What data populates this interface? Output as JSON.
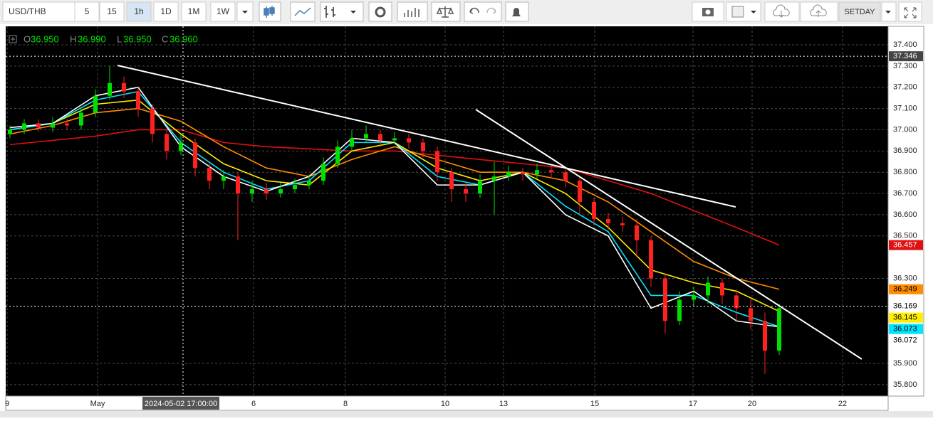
{
  "toolbar": {
    "symbol": "USD/THB",
    "intervals": [
      "5",
      "15",
      "1h",
      "1D",
      "1M",
      "1W"
    ],
    "active_interval": 2,
    "template": "SETDAY"
  },
  "ohlc_legend": {
    "o_label": "O",
    "open": "36.950",
    "h_label": "H",
    "high": "36.990",
    "l_label": "L",
    "low": "36.950",
    "c_label": "C",
    "close": "36.960"
  },
  "chart_data": {
    "type": "candlestick",
    "up_color": "#00e000",
    "down_color": "#ff2020",
    "candles": {
      "open": [
        36.98,
        37.0,
        37.03,
        37.01,
        37.03,
        37.02,
        37.08,
        37.16,
        37.22,
        37.18,
        37.1,
        36.98,
        36.9,
        36.94,
        36.82,
        36.76,
        36.78,
        36.7,
        36.72,
        36.7,
        36.72,
        36.74,
        36.76,
        36.84,
        36.92,
        36.96,
        36.98,
        36.95,
        36.96,
        36.94,
        36.9,
        36.8,
        36.72,
        36.7,
        36.76,
        36.78,
        36.8,
        36.79,
        36.81,
        36.8,
        36.76,
        36.66,
        36.58,
        36.56,
        36.55,
        36.48,
        36.3,
        36.1,
        36.2,
        36.22,
        36.28,
        36.22,
        36.16,
        36.1,
        35.96
      ],
      "high": [
        37.02,
        37.05,
        37.05,
        37.06,
        37.05,
        37.1,
        37.19,
        37.3,
        37.25,
        37.2,
        37.12,
        37.0,
        36.98,
        36.96,
        36.84,
        36.81,
        36.8,
        36.76,
        36.75,
        36.75,
        36.77,
        36.79,
        36.87,
        36.95,
        37.0,
        37.02,
        37.0,
        36.99,
        36.98,
        36.96,
        36.92,
        36.82,
        36.75,
        36.79,
        36.85,
        36.83,
        36.82,
        36.84,
        36.83,
        36.82,
        36.78,
        36.68,
        36.61,
        36.59,
        36.58,
        36.5,
        36.32,
        36.24,
        36.26,
        36.31,
        36.3,
        36.25,
        36.2,
        36.14,
        36.18
      ],
      "low": [
        36.96,
        36.98,
        36.99,
        36.99,
        37.0,
        37.0,
        37.06,
        37.14,
        37.15,
        37.06,
        36.94,
        36.86,
        36.88,
        36.78,
        36.72,
        36.72,
        36.48,
        36.66,
        36.67,
        36.68,
        36.7,
        36.72,
        36.74,
        36.82,
        36.9,
        36.94,
        36.92,
        36.93,
        36.91,
        36.87,
        36.76,
        36.66,
        36.66,
        36.68,
        36.6,
        36.76,
        36.76,
        36.77,
        36.77,
        36.73,
        36.6,
        36.55,
        36.53,
        36.52,
        36.4,
        36.26,
        36.04,
        36.08,
        36.17,
        36.18,
        36.18,
        36.1,
        36.06,
        35.85,
        35.94
      ],
      "close": [
        37.0,
        37.03,
        37.01,
        37.03,
        37.02,
        37.08,
        37.16,
        37.22,
        37.18,
        37.1,
        36.98,
        36.9,
        36.94,
        36.82,
        36.76,
        36.78,
        36.7,
        36.72,
        36.7,
        36.72,
        36.74,
        36.76,
        36.84,
        36.92,
        36.96,
        36.98,
        36.95,
        36.96,
        36.94,
        36.9,
        36.8,
        36.72,
        36.7,
        36.76,
        36.78,
        36.8,
        36.79,
        36.81,
        36.8,
        36.76,
        36.66,
        36.58,
        36.56,
        36.55,
        36.48,
        36.3,
        36.1,
        36.2,
        36.22,
        36.28,
        36.22,
        36.16,
        36.1,
        35.96,
        36.16
      ]
    },
    "lines": [
      {
        "color": "#e01010",
        "x": [
          0,
          3,
          6,
          9,
          12,
          15,
          18,
          21,
          24,
          27,
          30,
          33,
          36,
          39,
          42,
          45,
          48,
          51,
          54
        ],
        "values": [
          36.93,
          36.95,
          36.97,
          37.0,
          37.0,
          36.94,
          36.92,
          36.91,
          36.9,
          36.9,
          36.88,
          36.86,
          36.84,
          36.82,
          36.76,
          36.7,
          36.62,
          36.54,
          36.457
        ]
      },
      {
        "color": "#ff8c00",
        "x": [
          0,
          3,
          6,
          9,
          12,
          15,
          18,
          21,
          24,
          27,
          30,
          33,
          36,
          39,
          42,
          45,
          48,
          51,
          54
        ],
        "values": [
          36.98,
          37.02,
          37.08,
          37.1,
          37.04,
          36.92,
          36.82,
          36.78,
          36.86,
          36.92,
          36.86,
          36.8,
          36.8,
          36.76,
          36.66,
          36.52,
          36.38,
          36.3,
          36.249
        ]
      },
      {
        "color": "#ffee00",
        "x": [
          0,
          3,
          6,
          9,
          12,
          15,
          18,
          21,
          24,
          27,
          30,
          33,
          36,
          39,
          42,
          45,
          48,
          51,
          54
        ],
        "values": [
          37.0,
          37.03,
          37.12,
          37.14,
          36.98,
          36.84,
          36.76,
          36.74,
          36.9,
          36.94,
          36.82,
          36.76,
          36.8,
          36.7,
          36.54,
          36.34,
          36.28,
          36.24,
          36.145
        ]
      },
      {
        "color": "#00e5ff",
        "x": [
          0,
          3,
          6,
          9,
          12,
          15,
          18,
          21,
          24,
          27,
          30,
          33,
          36,
          39,
          42,
          45,
          48,
          51,
          54
        ],
        "values": [
          37.0,
          37.03,
          37.14,
          37.18,
          36.94,
          36.8,
          36.72,
          36.76,
          36.94,
          36.94,
          36.78,
          36.74,
          36.8,
          36.64,
          36.52,
          36.22,
          36.22,
          36.14,
          36.073
        ]
      },
      {
        "color": "#ffffff",
        "x": [
          0,
          3,
          6,
          9,
          12,
          15,
          18,
          21,
          24,
          27,
          30,
          33,
          36,
          39,
          42,
          45,
          48,
          51,
          54
        ],
        "values": [
          37.01,
          37.03,
          37.16,
          37.2,
          36.92,
          36.78,
          36.71,
          36.78,
          36.96,
          36.94,
          36.74,
          36.74,
          36.8,
          36.6,
          36.5,
          36.16,
          36.24,
          36.1,
          36.072
        ]
      }
    ],
    "xlim": [
      -0.3,
      61.65
    ],
    "xticks": [
      {
        "value": -0.2,
        "label": "9"
      },
      {
        "value": 6.15,
        "label": "May"
      },
      {
        "value": 17.1,
        "label": "6"
      },
      {
        "value": 23.55,
        "label": "8"
      },
      {
        "value": 30.55,
        "label": "10"
      },
      {
        "value": 34.65,
        "label": "13"
      },
      {
        "value": 41.05,
        "label": "15"
      },
      {
        "value": 47.95,
        "label": "17"
      },
      {
        "value": 52.1,
        "label": "20"
      },
      {
        "value": 58.45,
        "label": "22"
      }
    ],
    "ylim": [
      35.746,
      37.487
    ],
    "yticks": [
      {
        "value": 37.4,
        "label": "37.400"
      },
      {
        "value": 37.3,
        "label": "37.300"
      },
      {
        "value": 37.2,
        "label": "37.200"
      },
      {
        "value": 37.1,
        "label": "37.100"
      },
      {
        "value": 37.0,
        "label": "37.000"
      },
      {
        "value": 36.9,
        "label": "36.900"
      },
      {
        "value": 36.8,
        "label": "36.800"
      },
      {
        "value": 36.7,
        "label": "36.700"
      },
      {
        "value": 36.6,
        "label": "36.600"
      },
      {
        "value": 36.5,
        "label": "36.500"
      },
      {
        "value": 36.3,
        "label": "36.300"
      },
      {
        "value": 35.9,
        "label": "35.900"
      },
      {
        "value": 35.8,
        "label": "35.800"
      }
    ],
    "grid": true,
    "crosshair": {
      "x": {
        "value": 12.15,
        "label": "2024-05-02 17:00:00"
      },
      "y": 37.346
    },
    "last_price": 36.169
  }
}
